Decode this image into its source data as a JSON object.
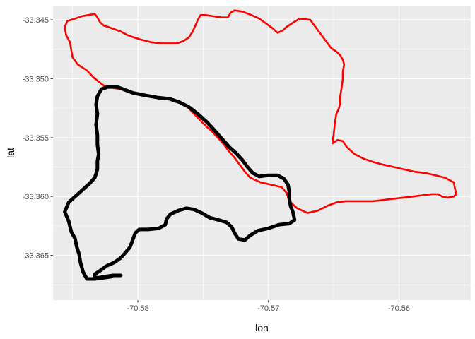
{
  "chart_data": {
    "type": "line",
    "title": "",
    "xlabel": "lon",
    "ylabel": "lat",
    "xlim": [
      -70.5865,
      -70.5545
    ],
    "ylim": [
      -33.3688,
      -33.3438
    ],
    "x_ticks": [
      -70.58,
      -70.57,
      -70.56
    ],
    "x_tick_labels": [
      "-70.58",
      "-70.57",
      "-70.56"
    ],
    "y_ticks": [
      -33.345,
      -33.35,
      -33.355,
      -33.36,
      -33.365
    ],
    "y_tick_labels": [
      "-33.345",
      "-33.350",
      "-33.355",
      "-33.360",
      "-33.365"
    ],
    "grid": true,
    "legend": "none",
    "series": [
      {
        "color": "#ff0000",
        "points": [
          [
            -70.5818,
            -33.3508
          ],
          [
            -70.5826,
            -33.3506
          ],
          [
            -70.5834,
            -33.3499
          ],
          [
            -70.5839,
            -33.3493
          ],
          [
            -70.5846,
            -33.3488
          ],
          [
            -70.585,
            -33.3482
          ],
          [
            -70.5851,
            -33.3476
          ],
          [
            -70.5852,
            -33.3469
          ],
          [
            -70.5855,
            -33.3463
          ],
          [
            -70.5856,
            -33.3456
          ],
          [
            -70.5854,
            -33.3451
          ],
          [
            -70.5848,
            -33.3449
          ],
          [
            -70.5843,
            -33.3447
          ],
          [
            -70.5838,
            -33.3446
          ],
          [
            -70.5833,
            -33.3445
          ],
          [
            -70.5831,
            -33.3448
          ],
          [
            -70.5829,
            -33.3452
          ],
          [
            -70.5826,
            -33.3455
          ],
          [
            -70.5823,
            -33.3456
          ],
          [
            -70.5818,
            -33.3458
          ],
          [
            -70.5813,
            -33.346
          ],
          [
            -70.5808,
            -33.3463
          ],
          [
            -70.5803,
            -33.3465
          ],
          [
            -70.5797,
            -33.3467
          ],
          [
            -70.579,
            -33.3469
          ],
          [
            -70.5783,
            -33.347
          ],
          [
            -70.5776,
            -33.347
          ],
          [
            -70.577,
            -33.347
          ],
          [
            -70.5765,
            -33.3468
          ],
          [
            -70.5761,
            -33.3465
          ],
          [
            -70.5758,
            -33.346
          ],
          [
            -70.5756,
            -33.3455
          ],
          [
            -70.5754,
            -33.345
          ],
          [
            -70.5752,
            -33.3446
          ],
          [
            -70.5748,
            -33.3446
          ],
          [
            -70.5742,
            -33.3447
          ],
          [
            -70.5736,
            -33.3448
          ],
          [
            -70.5731,
            -33.3448
          ],
          [
            -70.5729,
            -33.3444
          ],
          [
            -70.5726,
            -33.3442
          ],
          [
            -70.572,
            -33.3443
          ],
          [
            -70.5713,
            -33.3446
          ],
          [
            -70.5707,
            -33.3449
          ],
          [
            -70.5702,
            -33.3453
          ],
          [
            -70.5697,
            -33.3457
          ],
          [
            -70.5693,
            -33.3461
          ],
          [
            -70.5689,
            -33.3459
          ],
          [
            -70.5686,
            -33.3456
          ],
          [
            -70.5682,
            -33.3453
          ],
          [
            -70.5676,
            -33.3449
          ],
          [
            -70.5668,
            -33.345
          ],
          [
            -70.5664,
            -33.3456
          ],
          [
            -70.566,
            -33.3462
          ],
          [
            -70.5656,
            -33.3468
          ],
          [
            -70.5652,
            -33.3474
          ],
          [
            -70.5648,
            -33.3477
          ],
          [
            -70.5645,
            -33.348
          ],
          [
            -70.5643,
            -33.3484
          ],
          [
            -70.5642,
            -33.3488
          ],
          [
            -70.5643,
            -33.3494
          ],
          [
            -70.5643,
            -33.35
          ],
          [
            -70.5644,
            -33.3508
          ],
          [
            -70.5645,
            -33.3515
          ],
          [
            -70.5645,
            -33.3521
          ],
          [
            -70.5646,
            -33.3525
          ],
          [
            -70.5648,
            -33.353
          ],
          [
            -70.5649,
            -33.3537
          ],
          [
            -70.565,
            -33.3547
          ],
          [
            -70.5651,
            -33.3555
          ],
          [
            -70.5647,
            -33.3552
          ],
          [
            -70.5643,
            -33.3553
          ],
          [
            -70.564,
            -33.3558
          ],
          [
            -70.5634,
            -33.3564
          ],
          [
            -70.5627,
            -33.3568
          ],
          [
            -70.5619,
            -33.3571
          ],
          [
            -70.5612,
            -33.3573
          ],
          [
            -70.5604,
            -33.3575
          ],
          [
            -70.5596,
            -33.3577
          ],
          [
            -70.5588,
            -33.3579
          ],
          [
            -70.558,
            -33.358
          ],
          [
            -70.5572,
            -33.3582
          ],
          [
            -70.5565,
            -33.3584
          ],
          [
            -70.5558,
            -33.3588
          ],
          [
            -70.5557,
            -33.3594
          ],
          [
            -70.5556,
            -33.3598
          ],
          [
            -70.5558,
            -33.36
          ],
          [
            -70.5563,
            -33.3601
          ],
          [
            -70.5567,
            -33.36
          ],
          [
            -70.557,
            -33.3598
          ],
          [
            -70.5575,
            -33.3598
          ],
          [
            -70.5582,
            -33.3599
          ],
          [
            -70.5589,
            -33.36
          ],
          [
            -70.5597,
            -33.3601
          ],
          [
            -70.5605,
            -33.3602
          ],
          [
            -70.5612,
            -33.3603
          ],
          [
            -70.562,
            -33.3604
          ],
          [
            -70.5627,
            -33.3604
          ],
          [
            -70.5634,
            -33.3604
          ],
          [
            -70.5641,
            -33.3604
          ],
          [
            -70.5648,
            -33.3605
          ],
          [
            -70.5655,
            -33.3608
          ],
          [
            -70.5662,
            -33.3612
          ],
          [
            -70.567,
            -33.3614
          ],
          [
            -70.5678,
            -33.361
          ],
          [
            -70.5684,
            -33.3604
          ],
          [
            -70.5686,
            -33.3597
          ],
          [
            -70.569,
            -33.3592
          ],
          [
            -70.5698,
            -33.359
          ],
          [
            -70.5706,
            -33.3588
          ],
          [
            -70.5714,
            -33.3584
          ],
          [
            -70.5718,
            -33.3579
          ],
          [
            -70.5722,
            -33.3573
          ],
          [
            -70.5726,
            -33.3567
          ],
          [
            -70.573,
            -33.3562
          ],
          [
            -70.5734,
            -33.3556
          ],
          [
            -70.5738,
            -33.3551
          ],
          [
            -70.5743,
            -33.3545
          ],
          [
            -70.5749,
            -33.3539
          ],
          [
            -70.5756,
            -33.3531
          ],
          [
            -70.5762,
            -33.3524
          ],
          [
            -70.5769,
            -33.3519
          ],
          [
            -70.5777,
            -33.3517
          ],
          [
            -70.5786,
            -33.3516
          ],
          [
            -70.5796,
            -33.3514
          ],
          [
            -70.5806,
            -33.3511
          ],
          [
            -70.5812,
            -33.3509
          ],
          [
            -70.5818,
            -33.3508
          ]
        ]
      },
      {
        "color": "#000000",
        "points": [
          [
            -70.5813,
            -33.3667
          ],
          [
            -70.5819,
            -33.3667
          ],
          [
            -70.5825,
            -33.3668
          ],
          [
            -70.583,
            -33.3669
          ],
          [
            -70.5833,
            -33.3669
          ],
          [
            -70.5833,
            -33.3666
          ],
          [
            -70.5829,
            -33.3663
          ],
          [
            -70.5824,
            -33.3659
          ],
          [
            -70.5818,
            -33.3656
          ],
          [
            -70.5813,
            -33.3652
          ],
          [
            -70.5809,
            -33.3647
          ],
          [
            -70.5806,
            -33.3643
          ],
          [
            -70.5804,
            -33.3637
          ],
          [
            -70.5802,
            -33.3631
          ],
          [
            -70.5799,
            -33.3628
          ],
          [
            -70.5792,
            -33.3628
          ],
          [
            -70.5784,
            -33.3627
          ],
          [
            -70.5779,
            -33.3624
          ],
          [
            -70.5778,
            -33.3619
          ],
          [
            -70.5775,
            -33.3615
          ],
          [
            -70.5769,
            -33.3612
          ],
          [
            -70.5763,
            -33.361
          ],
          [
            -70.5757,
            -33.3611
          ],
          [
            -70.5751,
            -33.3614
          ],
          [
            -70.5745,
            -33.3618
          ],
          [
            -70.5738,
            -33.362
          ],
          [
            -70.5732,
            -33.3622
          ],
          [
            -70.5728,
            -33.3626
          ],
          [
            -70.5726,
            -33.3631
          ],
          [
            -70.5723,
            -33.3636
          ],
          [
            -70.5718,
            -33.3637
          ],
          [
            -70.5714,
            -33.3633
          ],
          [
            -70.5708,
            -33.3629
          ],
          [
            -70.57,
            -33.3627
          ],
          [
            -70.5692,
            -33.3624
          ],
          [
            -70.5684,
            -33.3623
          ],
          [
            -70.568,
            -33.362
          ],
          [
            -70.5681,
            -33.3614
          ],
          [
            -70.5683,
            -33.3608
          ],
          [
            -70.5684,
            -33.3602
          ],
          [
            -70.5684,
            -33.3596
          ],
          [
            -70.5685,
            -33.359
          ],
          [
            -70.5688,
            -33.3585
          ],
          [
            -70.5693,
            -33.3582
          ],
          [
            -70.57,
            -33.3582
          ],
          [
            -70.5707,
            -33.3583
          ],
          [
            -70.5712,
            -33.358
          ],
          [
            -70.5716,
            -33.3575
          ],
          [
            -70.572,
            -33.3569
          ],
          [
            -70.5725,
            -33.3563
          ],
          [
            -70.573,
            -33.3558
          ],
          [
            -70.5734,
            -33.3553
          ],
          [
            -70.5738,
            -33.3548
          ],
          [
            -70.5742,
            -33.3543
          ],
          [
            -70.5747,
            -33.3537
          ],
          [
            -70.5754,
            -33.353
          ],
          [
            -70.5761,
            -33.3524
          ],
          [
            -70.5768,
            -33.352
          ],
          [
            -70.5776,
            -33.3517
          ],
          [
            -70.5785,
            -33.3516
          ],
          [
            -70.5795,
            -33.3514
          ],
          [
            -70.5804,
            -33.3512
          ],
          [
            -70.5811,
            -33.3509
          ],
          [
            -70.5816,
            -33.3507
          ],
          [
            -70.5823,
            -33.3507
          ],
          [
            -70.5828,
            -33.3509
          ],
          [
            -70.5831,
            -33.3515
          ],
          [
            -70.5832,
            -33.3522
          ],
          [
            -70.5831,
            -33.353
          ],
          [
            -70.5832,
            -33.3539
          ],
          [
            -70.5831,
            -33.3548
          ],
          [
            -70.5831,
            -33.3556
          ],
          [
            -70.583,
            -33.3564
          ],
          [
            -70.5831,
            -33.357
          ],
          [
            -70.5831,
            -33.3577
          ],
          [
            -70.5833,
            -33.3584
          ],
          [
            -70.5837,
            -33.3589
          ],
          [
            -70.5842,
            -33.3594
          ],
          [
            -70.5848,
            -33.36
          ],
          [
            -70.5853,
            -33.3605
          ],
          [
            -70.5856,
            -33.3613
          ],
          [
            -70.5853,
            -33.3621
          ],
          [
            -70.5851,
            -33.363
          ],
          [
            -70.5848,
            -33.3636
          ],
          [
            -70.5847,
            -33.3642
          ],
          [
            -70.5845,
            -33.3649
          ],
          [
            -70.5844,
            -33.3656
          ],
          [
            -70.5842,
            -33.3664
          ],
          [
            -70.5839,
            -33.367
          ],
          [
            -70.5833,
            -33.367
          ],
          [
            -70.5826,
            -33.3669
          ],
          [
            -70.582,
            -33.3668
          ]
        ]
      }
    ]
  }
}
